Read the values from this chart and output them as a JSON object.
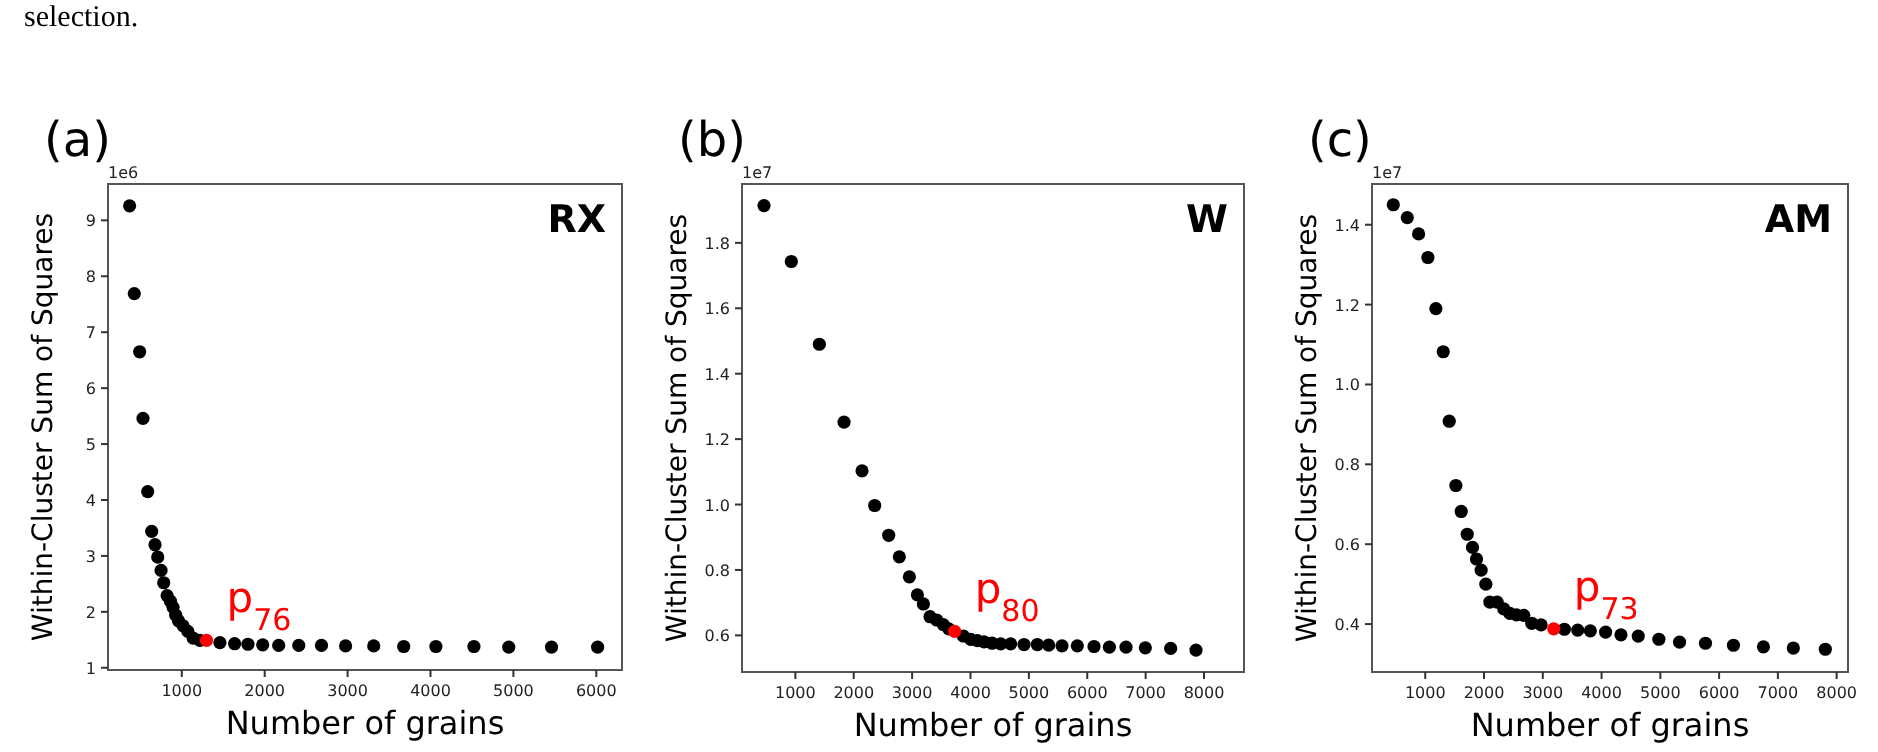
{
  "chart_data": [
    {
      "type": "other",
      "title": "selection."
    },
    {
      "type": "scatter",
      "title": "(a)",
      "subtitle": "RX",
      "xlabel": "Number of grains",
      "ylabel": "Within-Cluster Sum of Squares",
      "marker": "circle",
      "grid": false,
      "xlim": [
        110,
        6310
      ],
      "ylim": [
        0.96,
        9.65
      ],
      "xticks": [
        1000,
        2000,
        3000,
        4000,
        5000,
        6000
      ],
      "yticks": [
        1,
        2,
        3,
        4,
        5,
        6,
        7,
        8,
        9
      ],
      "series": [
        {
          "color": "#000000",
          "x": [
            371,
            427,
            492,
            532,
            589,
            637,
            677,
            710,
            750,
            782,
            823,
            863,
            895,
            927,
            960,
            1016,
            1073,
            1137,
            1218,
            1460,
            1637,
            1798,
            1976,
            2169,
            2411,
            2685,
            2976,
            3315,
            3677,
            4065,
            4524,
            4944,
            5460,
            6016
          ],
          "values": [
            9.26,
            7.69,
            6.65,
            5.46,
            4.15,
            3.44,
            3.2,
            2.98,
            2.74,
            2.52,
            2.29,
            2.19,
            2.08,
            1.94,
            1.84,
            1.75,
            1.65,
            1.53,
            1.49,
            1.45,
            1.43,
            1.42,
            1.41,
            1.4,
            1.4,
            1.4,
            1.39,
            1.39,
            1.38,
            1.38,
            1.38,
            1.37,
            1.37,
            1.37
          ]
        },
        {
          "color": "#ff0000",
          "x": [
            1298
          ],
          "values": [
            1.49
          ]
        }
      ],
      "annotations": [
        "1e6",
        {
          "text": "p$_{76}$",
          "x": 1298,
          "y": 1.49
        }
      ]
    },
    {
      "type": "scatter",
      "title": "(b)",
      "subtitle": "W",
      "xlabel": "Number of grains",
      "ylabel": "Within-Cluster Sum of Squares",
      "marker": "circle",
      "grid": false,
      "xlim": [
        86,
        8685
      ],
      "ylim": [
        0.488,
        1.98
      ],
      "xticks": [
        1000,
        2000,
        3000,
        4000,
        5000,
        6000,
        7000,
        8000
      ],
      "yticks": [
        {
          "value": 0.6,
          "label": "0.6"
        },
        {
          "value": 0.8,
          "label": "0.8"
        },
        {
          "value": 1,
          "label": "1.0"
        },
        {
          "value": 1.2,
          "label": "1.2"
        },
        {
          "value": 1.4,
          "label": "1.4"
        },
        {
          "value": 1.6,
          "label": "1.6"
        },
        {
          "value": 1.8,
          "label": "1.8"
        }
      ],
      "series": [
        {
          "color": "#000000",
          "x": [
            463,
            931,
            1411,
            1834,
            2142,
            2359,
            2599,
            2781,
            2953,
            3090,
            3193,
            3307,
            3421,
            3535,
            3627,
            3878,
            4003,
            4117,
            4232,
            4369,
            4517,
            4688,
            4917,
            5145,
            5339,
            5568,
            5830,
            6116,
            6379,
            6664,
            6995,
            7429,
            7863
          ],
          "values": [
            1.914,
            1.743,
            1.49,
            1.252,
            1.103,
            0.997,
            0.906,
            0.84,
            0.779,
            0.724,
            0.696,
            0.657,
            0.647,
            0.633,
            0.62,
            0.598,
            0.588,
            0.584,
            0.58,
            0.576,
            0.574,
            0.574,
            0.572,
            0.572,
            0.57,
            0.568,
            0.568,
            0.566,
            0.564,
            0.564,
            0.562,
            0.56,
            0.555
          ]
        },
        {
          "color": "#ff0000",
          "x": [
            3729
          ],
          "values": [
            0.612
          ]
        }
      ],
      "annotations": [
        "1e7",
        {
          "text": "p$_{80}$",
          "x": 3729,
          "y": 0.612
        }
      ]
    },
    {
      "type": "scatter",
      "title": "(c)",
      "subtitle": "AM",
      "xlabel": "Number of grains",
      "ylabel": "Within-Cluster Sum of Squares",
      "marker": "circle",
      "grid": false,
      "xlim": [
        94,
        8193
      ],
      "ylim": [
        0.28,
        1.502
      ],
      "xticks": [
        1000,
        2000,
        3000,
        4000,
        5000,
        6000,
        7000,
        8000
      ],
      "yticks": [
        {
          "value": 0.4,
          "label": "0.4"
        },
        {
          "value": 0.6,
          "label": "0.6"
        },
        {
          "value": 0.8,
          "label": "0.8"
        },
        {
          "value": 1,
          "label": "1.0"
        },
        {
          "value": 1.2,
          "label": "1.2"
        },
        {
          "value": 1.4,
          "label": "1.4"
        }
      ],
      "series": [
        {
          "color": "#000000",
          "x": [
            456,
            694,
            887,
            1045,
            1181,
            1306,
            1408,
            1521,
            1612,
            1714,
            1804,
            1872,
            1951,
            2031,
            2099,
            2223,
            2336,
            2438,
            2552,
            2676,
            2812,
            2971,
            3367,
            3594,
            3809,
            4069,
            4330,
            4624,
            4975,
            5327,
            5768,
            6244,
            6754,
            7263,
            7807
          ],
          "values": [
            1.45,
            1.418,
            1.377,
            1.318,
            1.19,
            1.082,
            0.908,
            0.747,
            0.682,
            0.625,
            0.592,
            0.563,
            0.535,
            0.5,
            0.455,
            0.455,
            0.438,
            0.427,
            0.423,
            0.422,
            0.402,
            0.398,
            0.387,
            0.385,
            0.383,
            0.38,
            0.373,
            0.37,
            0.362,
            0.355,
            0.352,
            0.347,
            0.343,
            0.34,
            0.337
          ]
        },
        {
          "color": "#ff0000",
          "x": [
            3186
          ],
          "values": [
            0.388
          ]
        }
      ],
      "annotations": [
        "1e7",
        {
          "text": "p$_{73}$",
          "x": 3186,
          "y": 0.388
        }
      ]
    }
  ]
}
